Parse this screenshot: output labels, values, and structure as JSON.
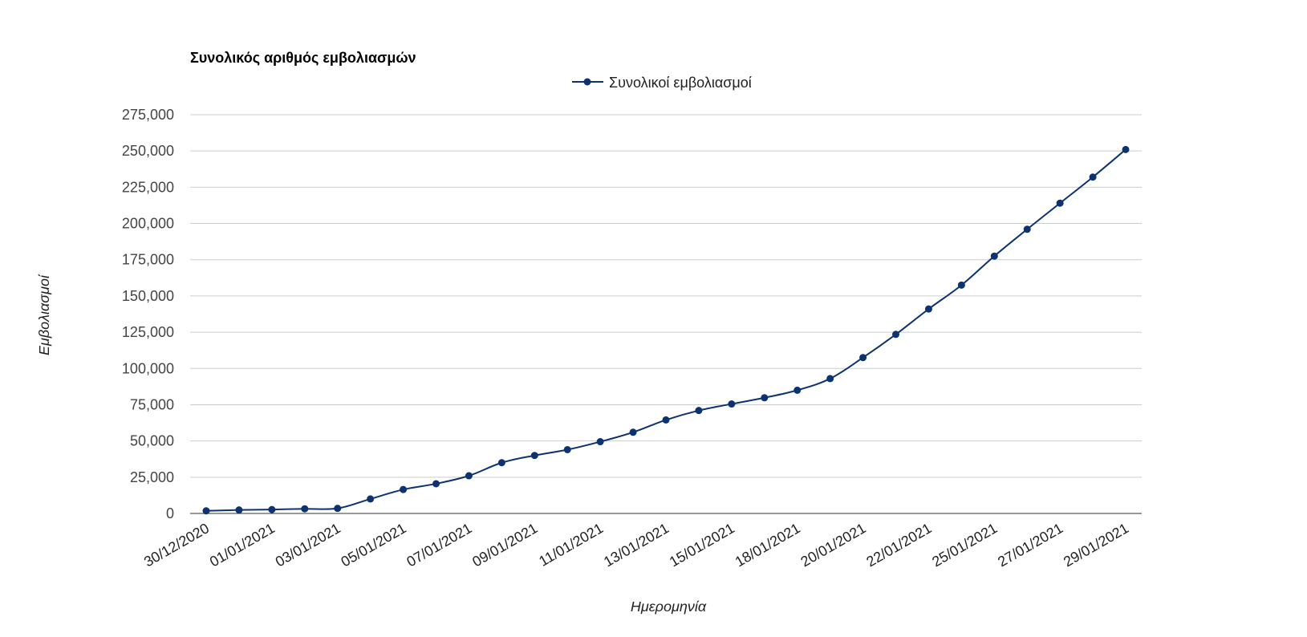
{
  "chart_data": {
    "type": "line",
    "title": "Συνολικός αριθμός εμβολιασμών",
    "xlabel": "Ημερομηνία",
    "ylabel": "Εμβολιασμοί",
    "ylim": [
      0,
      275000
    ],
    "yticks": [
      0,
      25000,
      50000,
      75000,
      100000,
      125000,
      150000,
      175000,
      200000,
      225000,
      250000,
      275000
    ],
    "ytick_labels": [
      "0",
      "25,000",
      "50,000",
      "75,000",
      "100,000",
      "125,000",
      "150,000",
      "175,000",
      "200,000",
      "225,000",
      "250,000",
      "275,000"
    ],
    "xtick_labels": [
      "30/12/2020",
      "01/01/2021",
      "03/01/2021",
      "05/01/2021",
      "07/01/2021",
      "09/01/2021",
      "11/01/2021",
      "13/01/2021",
      "15/01/2021",
      "18/01/2021",
      "20/01/2021",
      "22/01/2021",
      "25/01/2021",
      "27/01/2021",
      "29/01/2021"
    ],
    "legend_position": "top-center",
    "grid": true,
    "series": [
      {
        "name": "Συνολικοί εμβολιασμοί",
        "color": "#0d3270",
        "values": [
          1800,
          2400,
          2700,
          3200,
          3500,
          10000,
          16500,
          20500,
          26000,
          35000,
          40000,
          44000,
          49500,
          56000,
          64500,
          71000,
          75500,
          79800,
          85000,
          93000,
          107500,
          123500,
          141000,
          157500,
          177500,
          196000,
          214000,
          232000,
          251000
        ]
      }
    ]
  }
}
